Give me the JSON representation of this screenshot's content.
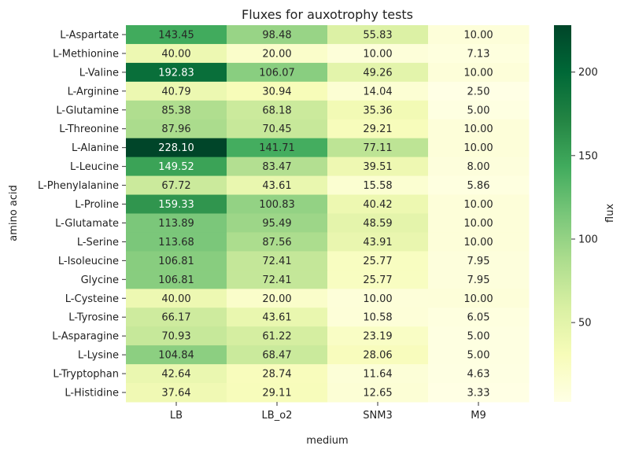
{
  "chart_data": {
    "type": "heatmap",
    "title": "Fluxes for auxotrophy tests",
    "xlabel": "medium",
    "ylabel": "amino acid",
    "colorbar_label": "flux",
    "colormap": "YlGn",
    "vmin": 2.5,
    "vmax": 228.1,
    "colorbar_ticks": [
      50,
      100,
      150,
      200
    ],
    "columns": [
      "LB",
      "LB_o2",
      "SNM3",
      "M9"
    ],
    "rows": [
      "L-Aspartate",
      "L-Methionine",
      "L-Valine",
      "L-Arginine",
      "L-Glutamine",
      "L-Threonine",
      "L-Alanine",
      "L-Leucine",
      "L-Phenylalanine",
      "L-Proline",
      "L-Glutamate",
      "L-Serine",
      "L-Isoleucine",
      "Glycine",
      "L-Cysteine",
      "L-Tyrosine",
      "L-Asparagine",
      "L-Lysine",
      "L-Tryptophan",
      "L-Histidine"
    ],
    "values": [
      [
        143.45,
        98.48,
        55.83,
        10.0
      ],
      [
        40.0,
        20.0,
        10.0,
        7.13
      ],
      [
        192.83,
        106.07,
        49.26,
        10.0
      ],
      [
        40.79,
        30.94,
        14.04,
        2.5
      ],
      [
        85.38,
        68.18,
        35.36,
        5.0
      ],
      [
        87.96,
        70.45,
        29.21,
        10.0
      ],
      [
        228.1,
        141.71,
        77.11,
        10.0
      ],
      [
        149.52,
        83.47,
        39.51,
        8.0
      ],
      [
        67.72,
        43.61,
        15.58,
        5.86
      ],
      [
        159.33,
        100.83,
        40.42,
        10.0
      ],
      [
        113.89,
        95.49,
        48.59,
        10.0
      ],
      [
        113.68,
        87.56,
        43.91,
        10.0
      ],
      [
        106.81,
        72.41,
        25.77,
        7.95
      ],
      [
        106.81,
        72.41,
        25.77,
        7.95
      ],
      [
        40.0,
        20.0,
        10.0,
        10.0
      ],
      [
        66.17,
        43.61,
        10.58,
        6.05
      ],
      [
        70.93,
        61.22,
        23.19,
        5.0
      ],
      [
        104.84,
        68.47,
        28.06,
        5.0
      ],
      [
        42.64,
        28.74,
        11.64,
        4.63
      ],
      [
        37.64,
        29.11,
        12.65,
        3.33
      ]
    ],
    "annotation_format": "2 decimals"
  }
}
